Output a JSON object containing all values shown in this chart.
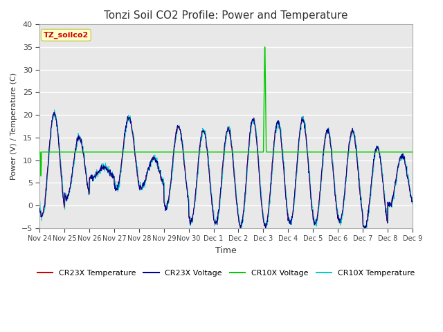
{
  "title": "Tonzi Soil CO2 Profile: Power and Temperature",
  "ylabel": "Power (V) / Temperature (C)",
  "xlabel": "Time",
  "ylim": [
    -5,
    40
  ],
  "yticks": [
    -5,
    0,
    5,
    10,
    15,
    20,
    25,
    30,
    35,
    40
  ],
  "xtick_labels": [
    "Nov 24",
    "Nov 25",
    "Nov 26",
    "Nov 27",
    "Nov 28",
    "Nov 29",
    "Nov 30",
    "Dec 1",
    "Dec 2",
    "Dec 3",
    "Dec 4",
    "Dec 5",
    "Dec 6",
    "Dec 7",
    "Dec 8",
    "Dec 9"
  ],
  "cr23x_temp_color": "#cc0000",
  "cr23x_volt_color": "#000099",
  "cr10x_volt_color": "#00cc00",
  "cr10x_temp_color": "#00cccc",
  "cr10x_volt_flat": 11.8,
  "fig_bg_color": "#ffffff",
  "plot_bg_color": "#e8e8e8",
  "annotation_text": "TZ_soilco2",
  "annotation_bg": "#ffffcc",
  "annotation_fg": "#cc0000",
  "annotation_edge": "#cccc66",
  "legend_items": [
    "CR23X Temperature",
    "CR23X Voltage",
    "CR10X Voltage",
    "CR10X Temperature"
  ]
}
